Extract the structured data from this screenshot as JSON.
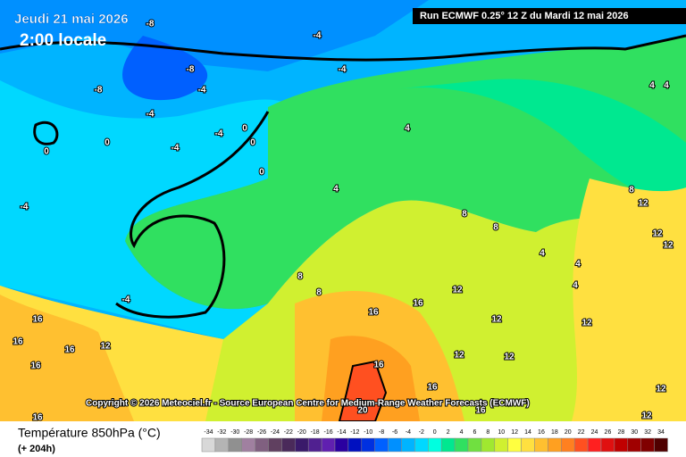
{
  "header": {
    "date": "Jeudi 21 mai 2026",
    "time": "2:00 locale",
    "run": "Run ECMWF 0.25° 12 Z du Mardi 12 mai 2026"
  },
  "copyright": "Copyright © 2026 Meteociel.fr - Source European Centre for Medium-Range Weather Forecasts (ECMWF)",
  "footer": {
    "title": "Température 850hPa (°C)",
    "lead": "(+ 204h)"
  },
  "contour_labels": [
    -8,
    -4,
    -8,
    -4,
    -8,
    -4,
    -4,
    -4,
    -4,
    0,
    0,
    0,
    0,
    0,
    -4,
    4,
    4,
    -4,
    8,
    8,
    4,
    4,
    8,
    12,
    12,
    12,
    16,
    16,
    12,
    16,
    16,
    16,
    16,
    12,
    12,
    12,
    16,
    16,
    20,
    16,
    16,
    12,
    12,
    8,
    8,
    4,
    4,
    4,
    12,
    12
  ],
  "scale": {
    "labels": [
      -34,
      -32,
      -30,
      -28,
      -26,
      -24,
      -22,
      -20,
      -18,
      -16,
      -14,
      -12,
      -10,
      -8,
      -6,
      -4,
      -2,
      0,
      2,
      4,
      6,
      8,
      10,
      12,
      14,
      16,
      18,
      20,
      22,
      24,
      26,
      28,
      30,
      32,
      34
    ],
    "colors": [
      "#d8d8d8",
      "#b4b4b4",
      "#909090",
      "#a080a0",
      "#806080",
      "#604060",
      "#4a2a5a",
      "#3a1a6a",
      "#502090",
      "#6020b0",
      "#2a00a0",
      "#0010c0",
      "#0030e0",
      "#0060ff",
      "#0090ff",
      "#00b4ff",
      "#00d8ff",
      "#00ffe0",
      "#00e890",
      "#30e060",
      "#70e040",
      "#a0e830",
      "#d0f030",
      "#ffff40",
      "#ffe040",
      "#ffc030",
      "#ffa020",
      "#ff8020",
      "#ff5020",
      "#ff2020",
      "#e01010",
      "#c00000",
      "#a00000",
      "#800000",
      "#500000"
    ]
  }
}
